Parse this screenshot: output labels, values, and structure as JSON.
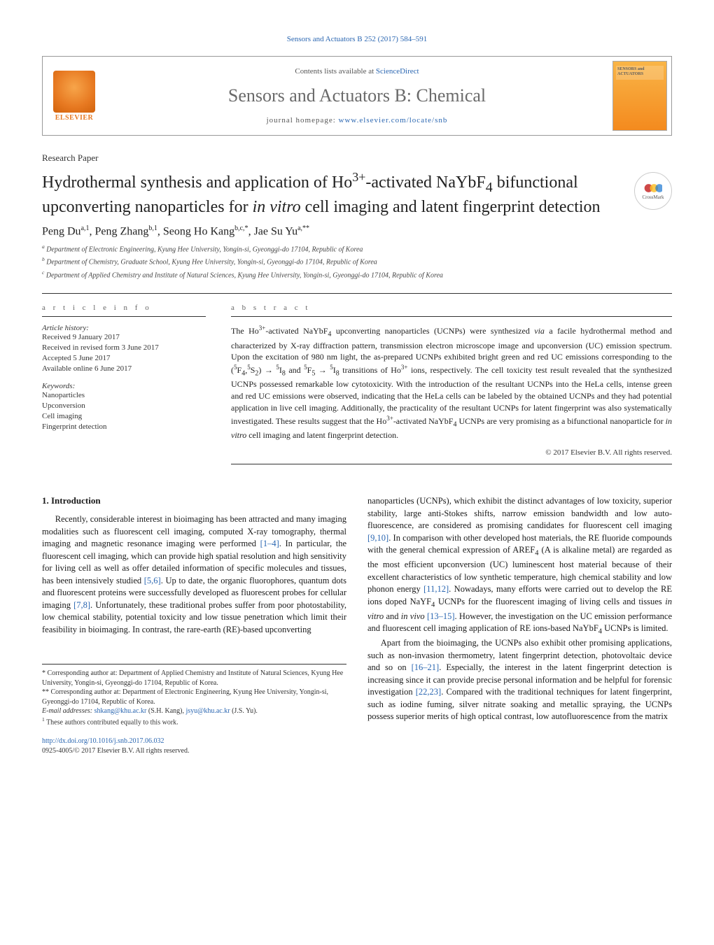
{
  "colors": {
    "link": "#2a66b1",
    "text": "#1a1a1a",
    "muted": "#6a6a6a",
    "elsevier": "#e77921",
    "border": "#333333"
  },
  "header": {
    "citation": "Sensors and Actuators B 252 (2017) 584–591",
    "contents_label": "Contents lists available at ",
    "sciencedirect": "ScienceDirect",
    "journal_name": "Sensors and Actuators B: Chemical",
    "homepage_label": "journal homepage: ",
    "homepage_url": "www.elsevier.com/locate/snb",
    "publisher": "ELSEVIER",
    "cover_label": "SENSORS and ACTUATORS"
  },
  "paper": {
    "type": "Research Paper",
    "title_html": "Hydrothermal synthesis and application of Ho<sup>3+</sup>-activated NaYbF<sub>4</sub> bifunctional upconverting nanoparticles for <i>in vitro</i> cell imaging and latent fingerprint detection",
    "crossmark": "CrossMark"
  },
  "authors": {
    "line_html": "Peng Du<sup>a,1</sup>, Peng Zhang<sup>b,1</sup>, Seong Ho Kang<sup>b,c,*</sup>, Jae Su Yu<sup>a,**</sup>",
    "affiliations": [
      "Department of Electronic Engineering, Kyung Hee University, Yongin-si, Gyeonggi-do 17104, Republic of Korea",
      "Department of Chemistry, Graduate School, Kyung Hee University, Yongin-si, Gyeonggi-do 17104, Republic of Korea",
      "Department of Applied Chemistry and Institute of Natural Sciences, Kyung Hee University, Yongin-si, Gyeonggi-do 17104, Republic of Korea"
    ],
    "affil_markers": [
      "a",
      "b",
      "c"
    ]
  },
  "article_info": {
    "heading": "a r t i c l e   i n f o",
    "history_label": "Article history:",
    "history": [
      "Received 9 January 2017",
      "Received in revised form 3 June 2017",
      "Accepted 5 June 2017",
      "Available online 6 June 2017"
    ],
    "keywords_label": "Keywords:",
    "keywords": [
      "Nanoparticles",
      "Upconversion",
      "Cell imaging",
      "Fingerprint detection"
    ]
  },
  "abstract": {
    "heading": "a b s t r a c t",
    "text_html": "The Ho<sup>3+</sup>-activated NaYbF<sub>4</sub> upconverting nanoparticles (UCNPs) were synthesized <i>via</i> a facile hydrothermal method and characterized by X-ray diffraction pattern, transmission electron microscope image and upconversion (UC) emission spectrum. Upon the excitation of 980 nm light, the as-prepared UCNPs exhibited bright green and red UC emissions corresponding to the (<sup>5</sup>F<sub>4</sub>,<sup>5</sup>S<sub>2</sub>) → <sup>5</sup>I<sub>8</sub> and <sup>5</sup>F<sub>5</sub> → <sup>5</sup>I<sub>8</sub> transitions of Ho<sup>3+</sup> ions, respectively. The cell toxicity test result revealed that the synthesized UCNPs possessed remarkable low cytotoxicity. With the introduction of the resultant UCNPs into the HeLa cells, intense green and red UC emissions were observed, indicating that the HeLa cells can be labeled by the obtained UCNPs and they had potential application in live cell imaging. Additionally, the practicality of the resultant UCNPs for latent fingerprint was also systematically investigated. These results suggest that the Ho<sup>3+</sup>-activated NaYbF<sub>4</sub> UCNPs are very promising as a bifunctional nanoparticle for <i>in vitro</i> cell imaging and latent fingerprint detection.",
    "copyright": "© 2017 Elsevier B.V. All rights reserved."
  },
  "body": {
    "section_number": "1.",
    "section_title": "Introduction",
    "left_html": "Recently, considerable interest in bioimaging has been attracted and many imaging modalities such as fluorescent cell imaging, computed X-ray tomography, thermal imaging and magnetic resonance imaging were performed <span class=\"ref\">[1–4]</span>. In particular, the fluorescent cell imaging, which can provide high spatial resolution and high sensitivity for living cell as well as offer detailed information of specific molecules and tissues, has been intensively studied <span class=\"ref\">[5,6]</span>. Up to date, the organic fluorophores, quantum dots and fluorescent proteins were successfully developed as fluorescent probes for cellular imaging <span class=\"ref\">[7,8]</span>. Unfortunately, these traditional probes suffer from poor photostability, low chemical stability, potential toxicity and low tissue penetration which limit their feasibility in bioimaging. In contrast, the rare-earth (RE)-based upconverting",
    "right_html_p1": "nanoparticles (UCNPs), which exhibit the distinct advantages of low toxicity, superior stability, large anti-Stokes shifts, narrow emission bandwidth and low auto-fluorescence, are considered as promising candidates for fluorescent cell imaging <span class=\"ref\">[9,10]</span>. In comparison with other developed host materials, the RE fluoride compounds with the general chemical expression of AREF<sub>4</sub> (A is alkaline metal) are regarded as the most efficient upconversion (UC) luminescent host material because of their excellent characteristics of low synthetic temperature, high chemical stability and low phonon energy <span class=\"ref\">[11,12]</span>. Nowadays, many efforts were carried out to develop the RE ions doped NaYF<sub>4</sub> UCNPs for the fluorescent imaging of living cells and tissues <i>in vitro</i> and <i>in vivo</i> <span class=\"ref\">[13–15]</span>. However, the investigation on the UC emission performance and fluorescent cell imaging application of RE ions-based NaYbF<sub>4</sub> UCNPs is limited.",
    "right_html_p2": "Apart from the bioimaging, the UCNPs also exhibit other promising applications, such as non-invasion thermometry, latent fingerprint detection, photovoltaic device and so on <span class=\"ref\">[16–21]</span>. Especially, the interest in the latent fingerprint detection is increasing since it can provide precise personal information and be helpful for forensic investigation <span class=\"ref\">[22,23]</span>. Compared with the traditional techniques for latent fingerprint, such as iodine fuming, silver nitrate soaking and metallic spraying, the UCNPs possess superior merits of high optical contrast, low autofluorescence from the matrix"
  },
  "footnotes": {
    "corr1_html": "* Corresponding author at: Department of Applied Chemistry and Institute of Natural Sciences, Kyung Hee University, Yongin-si, Gyeonggi-do 17104, Republic of Korea.",
    "corr2_html": "** Corresponding author at: Department of Electronic Engineering, Kyung Hee University, Yongin-si, Gyeonggi-do 17104, Republic of Korea.",
    "emails_label": "E-mail addresses: ",
    "email1": "shkang@khu.ac.kr",
    "email1_name": " (S.H. Kang), ",
    "email2": "jsyu@khu.ac.kr",
    "email2_name": " (J.S. Yu).",
    "contrib": "These authors contributed equally to this work.",
    "contrib_marker": "1",
    "doi": "http://dx.doi.org/10.1016/j.snb.2017.06.032",
    "issn_line": "0925-4005/© 2017 Elsevier B.V. All rights reserved."
  }
}
